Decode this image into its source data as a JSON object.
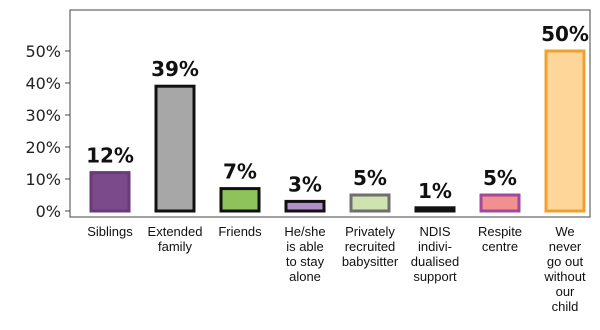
{
  "chart_data": {
    "type": "bar",
    "title": "",
    "xlabel": "",
    "ylabel": "",
    "ylim": [
      0,
      60
    ],
    "yticks": [
      0,
      10,
      20,
      30,
      40,
      50
    ],
    "ytick_labels": [
      "0%",
      "10%",
      "20%",
      "30%",
      "40%",
      "50%"
    ],
    "grid": false,
    "legend": "none",
    "categories": [
      [
        "Siblings"
      ],
      [
        "Extended",
        "family"
      ],
      [
        "Friends"
      ],
      [
        "He/she",
        "is able",
        "to stay",
        "alone"
      ],
      [
        "Privately",
        "recruited",
        "babysitter"
      ],
      [
        "NDIS",
        "indivi-",
        "dualised",
        "support"
      ],
      [
        "Respite",
        "centre"
      ],
      [
        "We",
        "never",
        "go out",
        "without",
        "our",
        "child"
      ]
    ],
    "values": [
      12,
      39,
      7,
      3,
      5,
      1,
      5,
      50
    ],
    "data_labels": [
      "12%",
      "39%",
      "7%",
      "3%",
      "5%",
      "1%",
      "5%",
      "50%"
    ],
    "colors": [
      {
        "fill": "#7b4a8a",
        "stroke": "#6a3a7a"
      },
      {
        "fill": "#a7a7a7",
        "stroke": "#111111"
      },
      {
        "fill": "#8ec25b",
        "stroke": "#111111"
      },
      {
        "fill": "#b190c8",
        "stroke": "#111111"
      },
      {
        "fill": "#cfe3b0",
        "stroke": "#6f6f6f"
      },
      {
        "fill": "#111111",
        "stroke": "#111111"
      },
      {
        "fill": "#f28f8f",
        "stroke": "#a04a99"
      },
      {
        "fill": "#ffd699",
        "stroke": "#f0a030"
      }
    ]
  }
}
